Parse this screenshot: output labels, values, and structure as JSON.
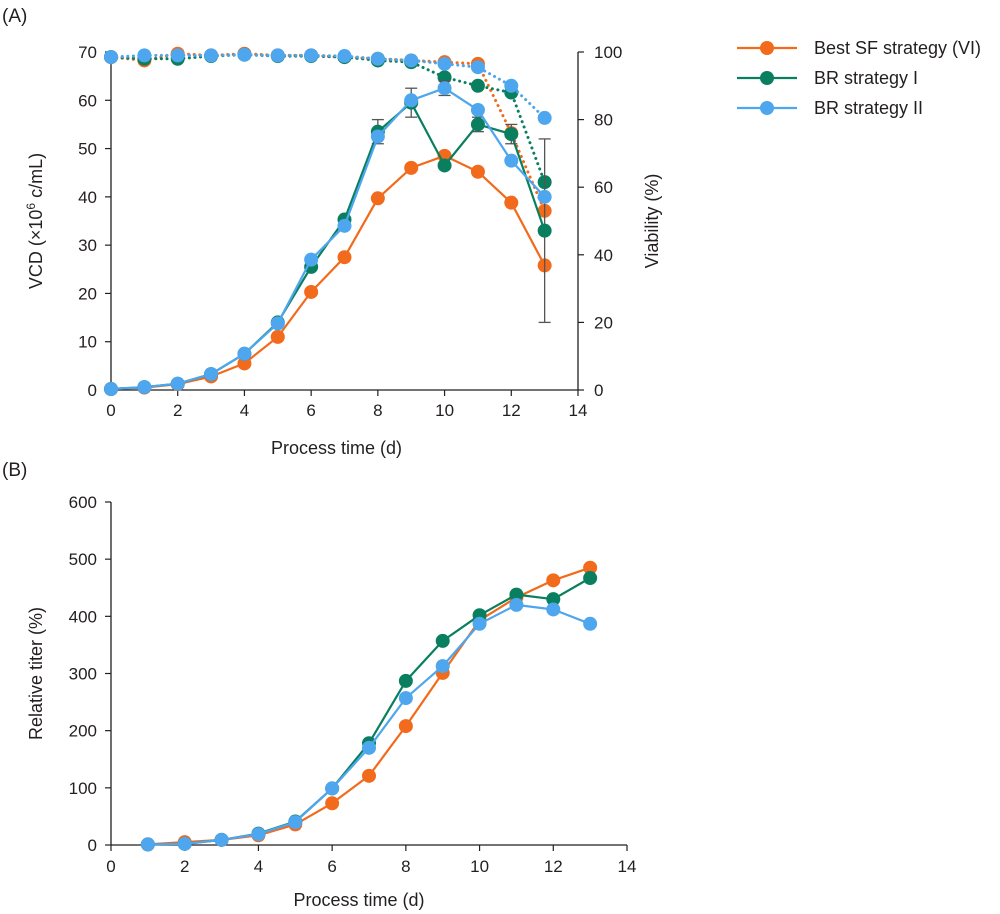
{
  "colors": {
    "best_sf": "#F26A1B",
    "br1": "#0A7F5F",
    "br2": "#4DA6EE",
    "axis": "#231f20",
    "error": "#555555"
  },
  "legend": [
    {
      "label": "Best SF strategy (VI)",
      "color": "#F26A1B"
    },
    {
      "label": "BR strategy I",
      "color": "#0A7F5F"
    },
    {
      "label": "BR strategy II",
      "color": "#4DA6EE"
    }
  ],
  "chart_data": [
    {
      "panel": "(A)",
      "type": "line",
      "xlabel": "Process time (d)",
      "ylabel": "VCD (×10",
      "ylabel_sup": "6",
      "ylabel_tail": " c/mL)",
      "y2label": "Viability (%)",
      "xlim": [
        0,
        14
      ],
      "xticks": [
        0,
        2,
        4,
        6,
        8,
        10,
        12,
        14
      ],
      "ylim": [
        0,
        70
      ],
      "yticks": [
        0,
        10,
        20,
        30,
        40,
        50,
        60,
        70
      ],
      "y2lim": [
        0,
        100
      ],
      "y2ticks": [
        0,
        20,
        40,
        60,
        80,
        100
      ],
      "x": [
        0,
        1,
        2,
        3,
        4,
        5,
        6,
        7,
        8,
        9,
        10,
        11,
        12,
        13
      ],
      "series": [
        {
          "name": "Best SF strategy (VI)",
          "key": "best_sf",
          "metric": "VCD",
          "axis": "left",
          "style": "solid",
          "values": [
            0.2,
            0.5,
            1.2,
            2.8,
            5.5,
            11.0,
            20.3,
            27.5,
            39.7,
            46.0,
            48.5,
            45.2,
            38.8,
            25.8
          ]
        },
        {
          "name": "BR strategy I",
          "key": "br1",
          "metric": "VCD",
          "axis": "left",
          "style": "solid",
          "values": [
            0.2,
            0.6,
            1.3,
            3.3,
            7.5,
            14.0,
            25.5,
            35.3,
            53.5,
            59.5,
            46.5,
            55.0,
            53.0,
            33.0
          ],
          "errors": [
            0,
            0,
            0,
            0,
            0,
            0,
            0,
            0,
            2.5,
            3.0,
            0,
            1.5,
            2.0,
            19.0
          ]
        },
        {
          "name": "BR strategy II",
          "key": "br2",
          "metric": "VCD",
          "axis": "left",
          "style": "solid",
          "values": [
            0.2,
            0.6,
            1.3,
            3.3,
            7.5,
            13.8,
            27.0,
            34.0,
            52.5,
            60.0,
            62.5,
            58.0,
            47.5,
            40.0
          ],
          "errors": [
            0,
            0,
            0,
            0,
            0,
            0,
            0,
            0,
            0,
            0,
            1.5,
            0,
            0,
            0
          ]
        },
        {
          "name": "Best SF strategy (VI)",
          "key": "best_sf",
          "metric": "Viability",
          "axis": "right",
          "style": "dotted",
          "values": [
            98.5,
            97.5,
            99.5,
            99.0,
            99.5,
            99.0,
            99.0,
            98.5,
            98.0,
            97.5,
            97.0,
            96.5,
            76.0,
            53.0
          ]
        },
        {
          "name": "BR strategy I",
          "key": "br1",
          "metric": "Viability",
          "axis": "right",
          "style": "dotted",
          "values": [
            98.5,
            98.0,
            98.0,
            98.8,
            99.2,
            98.8,
            98.8,
            98.5,
            97.5,
            97.0,
            92.5,
            90.0,
            88.0,
            61.5
          ]
        },
        {
          "name": "BR strategy II",
          "key": "br2",
          "metric": "Viability",
          "axis": "right",
          "style": "dotted",
          "values": [
            98.5,
            99.0,
            99.0,
            99.0,
            99.2,
            99.0,
            99.0,
            98.8,
            98.0,
            97.5,
            96.5,
            95.5,
            90.0,
            80.5
          ]
        }
      ]
    },
    {
      "panel": "(B)",
      "type": "line",
      "xlabel": "Process time (d)",
      "ylabel": "Relative titer (%)",
      "xlim": [
        0,
        14
      ],
      "xticks": [
        0,
        2,
        4,
        6,
        8,
        10,
        12,
        14
      ],
      "ylim": [
        0,
        600
      ],
      "yticks": [
        0,
        100,
        200,
        300,
        400,
        500,
        600
      ],
      "x": [
        1,
        2,
        3,
        4,
        5,
        6,
        7,
        8,
        9,
        10,
        11,
        12,
        13
      ],
      "series": [
        {
          "name": "Best SF strategy (VI)",
          "key": "best_sf",
          "values": [
            1,
            5,
            9,
            17,
            36,
            73,
            121,
            208,
            301,
            393,
            433,
            463,
            485
          ]
        },
        {
          "name": "BR strategy I",
          "key": "br1",
          "values": [
            1,
            2,
            9,
            20,
            41,
            99,
            178,
            287,
            357,
            402,
            438,
            430,
            467
          ]
        },
        {
          "name": "BR strategy II",
          "key": "br2",
          "values": [
            1,
            2,
            9,
            19,
            40,
            99,
            170,
            257,
            313,
            387,
            420,
            412,
            387
          ]
        }
      ]
    }
  ]
}
